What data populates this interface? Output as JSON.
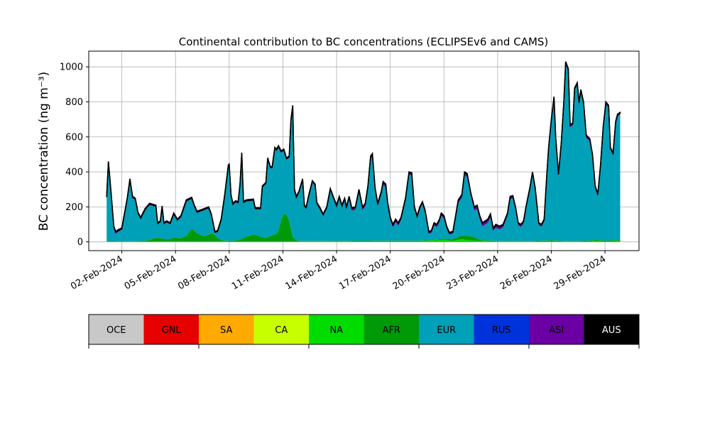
{
  "chart_data": {
    "type": "area",
    "stacked": true,
    "title": "Continental contribution to BC concentrations (ECLIPSEv6 and CAMS)",
    "ylabel": "BC concentration (ng m⁻³)",
    "xlabel": "",
    "ylim": [
      -50,
      1090
    ],
    "yticks": [
      0,
      200,
      400,
      600,
      800,
      1000
    ],
    "x_range_days": [
      0.15,
      30.9
    ],
    "xticks": [
      {
        "day": 2,
        "label": "02-Feb-2024"
      },
      {
        "day": 5,
        "label": "05-Feb-2024"
      },
      {
        "day": 8,
        "label": "08-Feb-2024"
      },
      {
        "day": 11,
        "label": "11-Feb-2024"
      },
      {
        "day": 14,
        "label": "14-Feb-2024"
      },
      {
        "day": 17,
        "label": "17-Feb-2024"
      },
      {
        "day": 20,
        "label": "20-Feb-2024"
      },
      {
        "day": 23,
        "label": "23-Feb-2024"
      },
      {
        "day": 26,
        "label": "26-Feb-2024"
      },
      {
        "day": 29,
        "label": "29-Feb-2024"
      }
    ],
    "grid": true,
    "legend": {
      "placement": "bottom",
      "entries": [
        {
          "name": "OCE",
          "color": "#c8c8c8"
        },
        {
          "name": "GNL",
          "color": "#e60000"
        },
        {
          "name": "SA",
          "color": "#ffaa00"
        },
        {
          "name": "CA",
          "color": "#c8ff00"
        },
        {
          "name": "NA",
          "color": "#00dc00"
        },
        {
          "name": "AFR",
          "color": "#009a09"
        },
        {
          "name": "EUR",
          "color": "#00a0b8"
        },
        {
          "name": "RUS",
          "color": "#0032dc"
        },
        {
          "name": "ASI",
          "color": "#6a00a3"
        },
        {
          "name": "AUS",
          "color": "#000000"
        }
      ]
    },
    "total": [
      [
        1.15,
        260
      ],
      [
        1.25,
        460
      ],
      [
        1.4,
        280
      ],
      [
        1.55,
        90
      ],
      [
        1.65,
        60
      ],
      [
        1.8,
        70
      ],
      [
        2.0,
        80
      ],
      [
        2.3,
        250
      ],
      [
        2.45,
        360
      ],
      [
        2.6,
        260
      ],
      [
        2.75,
        250
      ],
      [
        2.9,
        170
      ],
      [
        3.05,
        140
      ],
      [
        3.3,
        190
      ],
      [
        3.55,
        220
      ],
      [
        3.9,
        210
      ],
      [
        4.0,
        110
      ],
      [
        4.15,
        120
      ],
      [
        4.25,
        205
      ],
      [
        4.35,
        110
      ],
      [
        4.5,
        120
      ],
      [
        4.7,
        110
      ],
      [
        4.9,
        165
      ],
      [
        5.1,
        130
      ],
      [
        5.3,
        150
      ],
      [
        5.6,
        240
      ],
      [
        5.9,
        255
      ],
      [
        6.05,
        210
      ],
      [
        6.2,
        175
      ],
      [
        6.6,
        190
      ],
      [
        6.85,
        200
      ],
      [
        7.0,
        160
      ],
      [
        7.2,
        60
      ],
      [
        7.35,
        65
      ],
      [
        7.55,
        130
      ],
      [
        7.75,
        270
      ],
      [
        7.95,
        440
      ],
      [
        8.0,
        445
      ],
      [
        8.1,
        270
      ],
      [
        8.2,
        220
      ],
      [
        8.35,
        235
      ],
      [
        8.5,
        230
      ],
      [
        8.6,
        330
      ],
      [
        8.7,
        510
      ],
      [
        8.8,
        230
      ],
      [
        8.95,
        240
      ],
      [
        9.35,
        245
      ],
      [
        9.45,
        195
      ],
      [
        9.75,
        195
      ],
      [
        9.85,
        320
      ],
      [
        10.05,
        340
      ],
      [
        10.15,
        480
      ],
      [
        10.3,
        430
      ],
      [
        10.4,
        430
      ],
      [
        10.55,
        540
      ],
      [
        10.65,
        530
      ],
      [
        10.75,
        550
      ],
      [
        10.9,
        520
      ],
      [
        11.05,
        530
      ],
      [
        11.2,
        480
      ],
      [
        11.35,
        490
      ],
      [
        11.45,
        700
      ],
      [
        11.55,
        780
      ],
      [
        11.65,
        300
      ],
      [
        11.75,
        260
      ],
      [
        11.9,
        290
      ],
      [
        12.1,
        360
      ],
      [
        12.2,
        210
      ],
      [
        12.3,
        200
      ],
      [
        12.45,
        270
      ],
      [
        12.65,
        350
      ],
      [
        12.8,
        330
      ],
      [
        12.9,
        225
      ],
      [
        13.05,
        200
      ],
      [
        13.25,
        160
      ],
      [
        13.45,
        200
      ],
      [
        13.65,
        305
      ],
      [
        13.85,
        250
      ],
      [
        14.0,
        210
      ],
      [
        14.15,
        260
      ],
      [
        14.3,
        210
      ],
      [
        14.45,
        250
      ],
      [
        14.55,
        200
      ],
      [
        14.7,
        260
      ],
      [
        14.85,
        195
      ],
      [
        15.05,
        200
      ],
      [
        15.25,
        300
      ],
      [
        15.45,
        200
      ],
      [
        15.6,
        220
      ],
      [
        15.75,
        320
      ],
      [
        15.9,
        490
      ],
      [
        16.0,
        505
      ],
      [
        16.15,
        310
      ],
      [
        16.3,
        220
      ],
      [
        16.5,
        290
      ],
      [
        16.6,
        345
      ],
      [
        16.75,
        330
      ],
      [
        16.85,
        230
      ],
      [
        17.0,
        140
      ],
      [
        17.15,
        100
      ],
      [
        17.3,
        130
      ],
      [
        17.45,
        110
      ],
      [
        17.6,
        140
      ],
      [
        17.85,
        250
      ],
      [
        18.05,
        400
      ],
      [
        18.2,
        395
      ],
      [
        18.35,
        200
      ],
      [
        18.5,
        150
      ],
      [
        18.65,
        200
      ],
      [
        18.8,
        230
      ],
      [
        18.95,
        180
      ],
      [
        19.15,
        60
      ],
      [
        19.3,
        65
      ],
      [
        19.45,
        110
      ],
      [
        19.6,
        100
      ],
      [
        19.75,
        130
      ],
      [
        19.85,
        165
      ],
      [
        20.0,
        150
      ],
      [
        20.15,
        90
      ],
      [
        20.3,
        55
      ],
      [
        20.5,
        60
      ],
      [
        20.65,
        150
      ],
      [
        20.8,
        240
      ],
      [
        21.0,
        270
      ],
      [
        21.15,
        400
      ],
      [
        21.3,
        390
      ],
      [
        21.5,
        280
      ],
      [
        21.7,
        200
      ],
      [
        21.85,
        210
      ],
      [
        22.0,
        150
      ],
      [
        22.15,
        110
      ],
      [
        22.3,
        120
      ],
      [
        22.45,
        130
      ],
      [
        22.6,
        160
      ],
      [
        22.75,
        80
      ],
      [
        22.9,
        100
      ],
      [
        23.1,
        90
      ],
      [
        23.3,
        100
      ],
      [
        23.55,
        165
      ],
      [
        23.7,
        260
      ],
      [
        23.85,
        265
      ],
      [
        24.0,
        200
      ],
      [
        24.15,
        110
      ],
      [
        24.3,
        100
      ],
      [
        24.45,
        120
      ],
      [
        24.6,
        210
      ],
      [
        24.8,
        310
      ],
      [
        24.95,
        400
      ],
      [
        25.1,
        310
      ],
      [
        25.3,
        110
      ],
      [
        25.45,
        100
      ],
      [
        25.6,
        130
      ],
      [
        25.75,
        390
      ],
      [
        25.85,
        540
      ],
      [
        26.0,
        700
      ],
      [
        26.15,
        830
      ],
      [
        26.25,
        590
      ],
      [
        26.4,
        390
      ],
      [
        26.55,
        560
      ],
      [
        26.7,
        800
      ],
      [
        26.8,
        1030
      ],
      [
        26.95,
        990
      ],
      [
        27.05,
        670
      ],
      [
        27.2,
        680
      ],
      [
        27.3,
        880
      ],
      [
        27.45,
        910
      ],
      [
        27.55,
        800
      ],
      [
        27.65,
        870
      ],
      [
        27.8,
        800
      ],
      [
        27.95,
        610
      ],
      [
        28.15,
        590
      ],
      [
        28.3,
        500
      ],
      [
        28.45,
        320
      ],
      [
        28.6,
        275
      ],
      [
        28.75,
        440
      ],
      [
        28.9,
        660
      ],
      [
        29.05,
        800
      ],
      [
        29.2,
        780
      ],
      [
        29.3,
        540
      ],
      [
        29.45,
        510
      ],
      [
        29.6,
        690
      ],
      [
        29.7,
        730
      ],
      [
        29.85,
        740
      ]
    ],
    "series": [
      {
        "name": "NA",
        "points": [
          [
            1.15,
            3
          ],
          [
            3.0,
            3
          ],
          [
            6.0,
            4
          ],
          [
            9.0,
            3
          ],
          [
            11.0,
            3
          ],
          [
            13.0,
            4
          ],
          [
            16.0,
            4
          ],
          [
            18.5,
            4
          ],
          [
            19.5,
            8
          ],
          [
            20.0,
            12
          ],
          [
            20.5,
            6
          ],
          [
            21.0,
            15
          ],
          [
            21.5,
            8
          ],
          [
            22.5,
            5
          ],
          [
            23.0,
            3
          ],
          [
            25.0,
            3
          ],
          [
            26.0,
            4
          ],
          [
            26.5,
            3
          ],
          [
            28.0,
            3
          ],
          [
            28.5,
            7
          ],
          [
            29.0,
            3
          ],
          [
            29.85,
            6
          ]
        ]
      },
      {
        "name": "AFR",
        "points": [
          [
            1.15,
            2
          ],
          [
            2.5,
            1
          ],
          [
            3.5,
            5
          ],
          [
            3.8,
            25
          ],
          [
            4.0,
            18
          ],
          [
            4.3,
            15
          ],
          [
            4.6,
            10
          ],
          [
            4.9,
            20
          ],
          [
            5.3,
            18
          ],
          [
            5.6,
            30
          ],
          [
            5.8,
            70
          ],
          [
            5.95,
            72
          ],
          [
            6.2,
            45
          ],
          [
            6.5,
            25
          ],
          [
            6.9,
            40
          ],
          [
            7.1,
            55
          ],
          [
            7.3,
            20
          ],
          [
            7.6,
            5
          ],
          [
            8.2,
            3
          ],
          [
            8.6,
            10
          ],
          [
            9.0,
            30
          ],
          [
            9.4,
            40
          ],
          [
            9.8,
            25
          ],
          [
            10.1,
            20
          ],
          [
            10.4,
            35
          ],
          [
            10.7,
            45
          ],
          [
            10.9,
            120
          ],
          [
            11.1,
            170
          ],
          [
            11.3,
            140
          ],
          [
            11.55,
            25
          ],
          [
            11.8,
            2
          ],
          [
            13.0,
            2
          ],
          [
            16.0,
            3
          ],
          [
            19.5,
            3
          ],
          [
            20.5,
            10
          ],
          [
            21.0,
            22
          ],
          [
            21.6,
            25
          ],
          [
            22.0,
            5
          ],
          [
            22.5,
            3
          ],
          [
            25.0,
            3
          ],
          [
            26.0,
            5
          ],
          [
            27.0,
            2
          ],
          [
            28.0,
            4
          ],
          [
            29.0,
            5
          ],
          [
            29.85,
            5
          ]
        ]
      },
      {
        "name": "ASI",
        "points": [
          [
            1.15,
            3
          ],
          [
            1.6,
            12
          ],
          [
            2.0,
            5
          ],
          [
            12.0,
            5
          ],
          [
            15.0,
            12
          ],
          [
            16.5,
            15
          ],
          [
            18.0,
            10
          ],
          [
            20.5,
            12
          ],
          [
            22.0,
            18
          ],
          [
            23.0,
            15
          ],
          [
            24.0,
            10
          ],
          [
            26.0,
            8
          ],
          [
            27.0,
            10
          ],
          [
            28.0,
            12
          ],
          [
            29.85,
            8
          ]
        ]
      },
      {
        "name": "AUS",
        "points": [
          [
            1.15,
            5
          ],
          [
            29.85,
            5
          ]
        ]
      }
    ],
    "residual_series": "EUR",
    "stack_order": [
      "NA",
      "AFR",
      "EUR",
      "ASI",
      "AUS"
    ]
  }
}
